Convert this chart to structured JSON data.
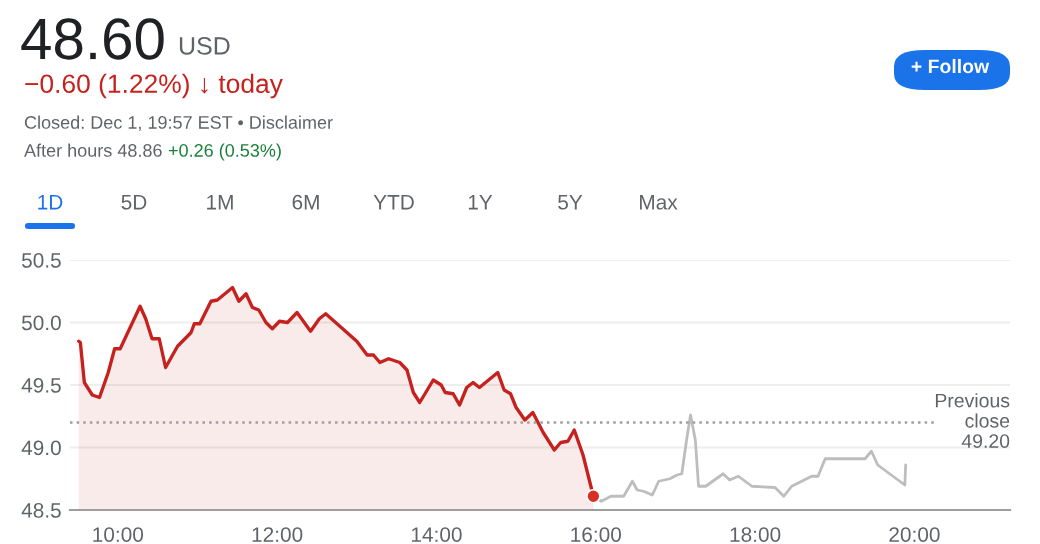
{
  "chart_data": {
    "type": "line",
    "title": "48.60",
    "subtitle": "USD",
    "annotations": [
      "−0.60 (1.22%) ↓ today",
      "Closed: Dec 1, 19:57 EST • Disclaimer",
      "After hours 48.86",
      "+0.26 (0.53%)",
      "+ Follow",
      "1D",
      "5D",
      "1M",
      "6M",
      "YTD",
      "1Y",
      "5Y",
      "Max"
    ],
    "series": [
      {
        "type": "area",
        "color": "#c5221f",
        "x": [
          9.51,
          9.53,
          9.58,
          9.68,
          9.77,
          9.88,
          9.96,
          10.03,
          10.28,
          10.35,
          10.43,
          10.52,
          10.6,
          10.75,
          10.92,
          10.96,
          11.03,
          11.17,
          11.25,
          11.44,
          11.52,
          11.61,
          11.69,
          11.77,
          11.86,
          11.94,
          12.03,
          12.13,
          12.25,
          12.42,
          12.53,
          12.61,
          13.0,
          13.13,
          13.21,
          13.29,
          13.4,
          13.54,
          13.63,
          13.71,
          13.79,
          13.96,
          14.06,
          14.11,
          14.21,
          14.29,
          14.38,
          14.46,
          14.54,
          14.77,
          14.85,
          14.93,
          15.0,
          15.11,
          15.21,
          15.34,
          15.48,
          15.56,
          15.65,
          15.73,
          15.84,
          15.97
        ],
        "values": [
          49.85,
          49.84,
          49.52,
          49.42,
          49.4,
          49.6,
          49.79,
          49.79,
          50.13,
          50.03,
          49.87,
          49.87,
          49.64,
          49.81,
          49.92,
          49.99,
          49.99,
          50.17,
          50.18,
          50.28,
          50.17,
          50.23,
          50.12,
          50.1,
          50.0,
          49.95,
          50.01,
          50.0,
          50.08,
          49.93,
          50.03,
          50.07,
          49.85,
          49.74,
          49.74,
          49.68,
          49.71,
          49.68,
          49.62,
          49.44,
          49.36,
          49.54,
          49.5,
          49.44,
          49.43,
          49.34,
          49.48,
          49.52,
          49.48,
          49.6,
          49.46,
          49.43,
          49.32,
          49.22,
          49.28,
          49.12,
          48.98,
          49.04,
          49.05,
          49.14,
          48.94,
          48.61
        ]
      },
      {
        "color": "#bdbdbd",
        "x": [
          15.97,
          16.07,
          16.19,
          16.35,
          16.46,
          16.52,
          16.6,
          16.71,
          16.79,
          16.93,
          17.02,
          17.08,
          17.14,
          17.19,
          17.25,
          17.29,
          17.38,
          17.6,
          17.68,
          17.79,
          17.96,
          18.25,
          18.36,
          18.46,
          18.71,
          18.79,
          18.88,
          19.38,
          19.46,
          19.54,
          19.71,
          19.88,
          19.89
        ],
        "values": [
          48.61,
          48.57,
          48.61,
          48.61,
          48.73,
          48.66,
          48.65,
          48.62,
          48.73,
          48.75,
          48.78,
          48.79,
          49.06,
          49.26,
          49.06,
          48.69,
          48.69,
          48.79,
          48.74,
          48.77,
          48.69,
          48.68,
          48.61,
          48.69,
          48.77,
          48.77,
          48.91,
          48.91,
          48.97,
          48.86,
          48.78,
          48.7,
          48.86
        ]
      },
      {
        "type": "scatter",
        "color": "#d93025",
        "x": [
          15.97
        ],
        "values": [
          48.61
        ]
      }
    ],
    "xlim": [
      9.4,
      21.2
    ],
    "ylim": [
      48.5,
      50.5
    ],
    "xticks": [
      {
        "value": 10,
        "label": "10:00"
      },
      {
        "value": 12,
        "label": "12:00"
      },
      {
        "value": 14,
        "label": "14:00"
      },
      {
        "value": 16,
        "label": "16:00"
      },
      {
        "value": 18,
        "label": "18:00"
      },
      {
        "value": 20,
        "label": "20:00"
      }
    ],
    "yticks": [
      {
        "value": 48.5,
        "label": "48.5"
      },
      {
        "value": 49.0,
        "label": "49.0"
      },
      {
        "value": 49.5,
        "label": "49.5"
      },
      {
        "value": 50.0,
        "label": "50.0"
      },
      {
        "value": 50.5,
        "label": "50.5"
      }
    ],
    "ref_lines": [
      {
        "axis": "y",
        "value": 49.2,
        "label": "Previous\nclose\n49.20",
        "color": "#9e9e9e",
        "line_style": "dotted"
      }
    ],
    "grid": "y",
    "legend": false
  }
}
